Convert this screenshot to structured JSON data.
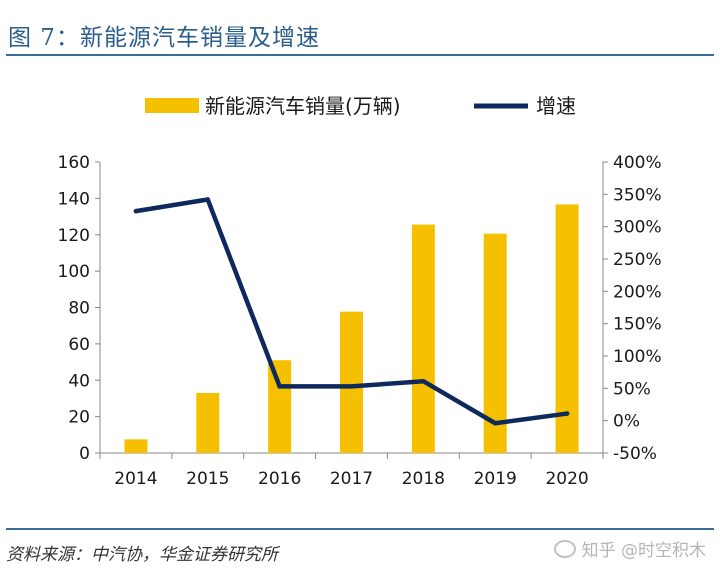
{
  "title": "图 7：新能源汽车销量及增速",
  "source": "资料来源：中汽协，华金证券研究所",
  "watermark": "知乎 @时空积木",
  "colors": {
    "bar": "#f5c000",
    "line": "#0e2a5c",
    "rule": "#3a6a97",
    "title": "#2b5d8c"
  },
  "chart_data": {
    "type": "bar",
    "categories": [
      "2014",
      "2015",
      "2016",
      "2017",
      "2018",
      "2019",
      "2020"
    ],
    "series": [
      {
        "name": "新能源汽车销量(万辆)",
        "type": "bar",
        "axis": "left",
        "values": [
          7.5,
          33,
          51,
          77.7,
          125.6,
          120.6,
          136.7
        ]
      },
      {
        "name": "增速",
        "type": "line",
        "axis": "right",
        "values": [
          324,
          342,
          53,
          53,
          61,
          -4,
          11
        ]
      }
    ],
    "y_left": {
      "min": 0,
      "max": 160,
      "ticks": [
        "0",
        "20",
        "40",
        "60",
        "80",
        "100",
        "120",
        "140",
        "160"
      ]
    },
    "y_right": {
      "min": -50,
      "max": 400,
      "ticks": [
        "-50%",
        "0%",
        "50%",
        "100%",
        "150%",
        "200%",
        "250%",
        "300%",
        "350%",
        "400%"
      ]
    },
    "legend_position": "top",
    "grid": false
  }
}
